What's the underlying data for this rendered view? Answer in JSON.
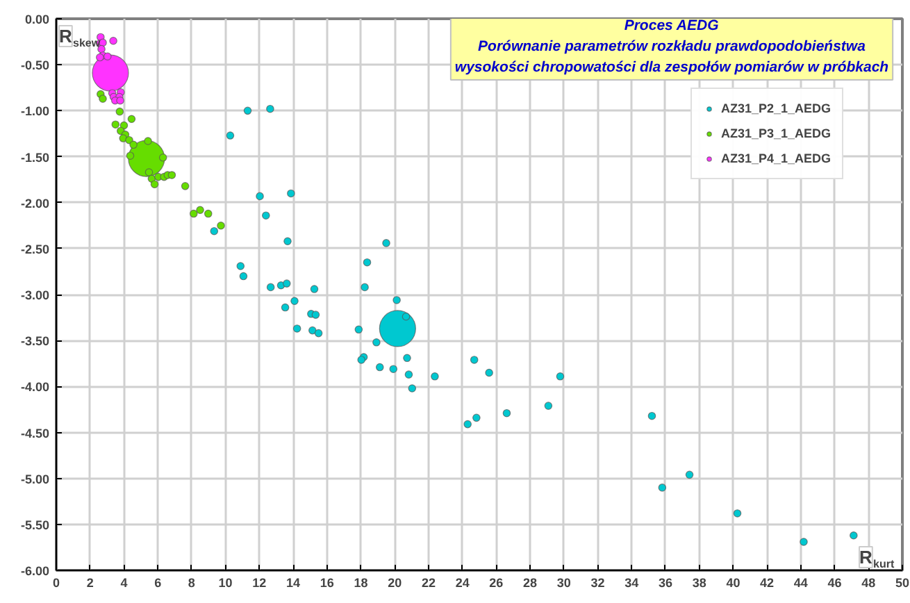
{
  "chart_data": {
    "type": "bubble",
    "title": "Proces AEDG\nPorównanie parametrów rozkładu prawdopodobieństwa\nwysokości chropowatości dla zespołów pomiarów w próbkach",
    "xlabel": "R$_{kurt}$",
    "ylabel": "R$_{skew}$",
    "series": [
      {
        "name": "AZ31_P2_1_AEDG",
        "color": "#00c8d0",
        "x": [
          11.31,
          12.64,
          10.28,
          12.03,
          13.87,
          12.39,
          13.67,
          9.33,
          19.5,
          10.89,
          11.06,
          18.37,
          12.67,
          13.28,
          13.62,
          15.25,
          18.23,
          20.12,
          14.08,
          13.53,
          15.06,
          15.33,
          14.23,
          15.14,
          15.5,
          17.87,
          20.67,
          18.92,
          18.17,
          18.03,
          19.12,
          19.92,
          20.73,
          20.83,
          22.37,
          21.03,
          24.7,
          25.58,
          29.78,
          29.08,
          26.62,
          24.83,
          24.31,
          35.2,
          37.42,
          35.81,
          40.25,
          44.17,
          47.12,
          20.17
        ],
        "values": [
          -1.0,
          -0.98,
          -1.27,
          -1.93,
          -1.9,
          -2.14,
          -2.42,
          -2.31,
          -2.44,
          -2.69,
          -2.8,
          -2.65,
          -2.92,
          -2.9,
          -2.88,
          -2.94,
          -2.92,
          -3.06,
          -3.07,
          -3.14,
          -3.21,
          -3.22,
          -3.37,
          -3.39,
          -3.42,
          -3.38,
          -3.24,
          -3.52,
          -3.68,
          -3.71,
          -3.79,
          -3.81,
          -3.69,
          -3.87,
          -3.89,
          -4.02,
          -3.71,
          -3.85,
          -3.89,
          -4.21,
          -4.29,
          -4.34,
          -4.41,
          -4.32,
          -4.96,
          -5.1,
          -5.38,
          -5.69,
          -5.62,
          -3.37
        ],
        "sizes": [
          0.04,
          0.04,
          0.04,
          0.04,
          0.04,
          0.04,
          0.04,
          0.04,
          0.04,
          0.04,
          0.04,
          0.04,
          0.04,
          0.04,
          0.04,
          0.04,
          0.04,
          0.04,
          0.04,
          0.04,
          0.04,
          0.04,
          0.04,
          0.04,
          0.04,
          0.04,
          0.04,
          0.04,
          0.04,
          0.04,
          0.04,
          0.04,
          0.04,
          0.04,
          0.04,
          0.04,
          0.04,
          0.04,
          0.04,
          0.04,
          0.04,
          0.04,
          0.04,
          0.04,
          0.04,
          0.04,
          0.04,
          0.04,
          0.04,
          1
        ]
      },
      {
        "name": "AZ31_P3_1_AEDG",
        "color": "#66dd00",
        "x": [
          2.62,
          2.75,
          3.75,
          4.45,
          3.5,
          4.0,
          3.81,
          4.08,
          3.95,
          4.31,
          4.56,
          5.42,
          4.37,
          6.31,
          5.48,
          5.64,
          5.81,
          6.03,
          6.37,
          6.58,
          6.83,
          7.62,
          8.12,
          8.5,
          8.98,
          9.73,
          5.33
        ],
        "values": [
          -0.82,
          -0.87,
          -1.01,
          -1.09,
          -1.15,
          -1.16,
          -1.22,
          -1.26,
          -1.3,
          -1.32,
          -1.37,
          -1.33,
          -1.49,
          -1.51,
          -1.67,
          -1.74,
          -1.8,
          -1.72,
          -1.72,
          -1.7,
          -1.7,
          -1.82,
          -2.12,
          -2.08,
          -2.12,
          -2.25,
          -1.52
        ],
        "sizes": [
          0.04,
          0.04,
          0.04,
          0.04,
          0.04,
          0.04,
          0.04,
          0.04,
          0.04,
          0.04,
          0.04,
          0.04,
          0.04,
          0.04,
          0.04,
          0.04,
          0.04,
          0.04,
          0.04,
          0.04,
          0.04,
          0.04,
          0.04,
          0.04,
          0.04,
          0.04,
          1
        ]
      },
      {
        "name": "AZ31_P4_1_AEDG",
        "color": "#ff33ff",
        "x": [
          2.62,
          2.58,
          2.75,
          3.37,
          2.67,
          2.75,
          2.58,
          3.03,
          3.31,
          3.81,
          3.39,
          3.73,
          3.48,
          3.78,
          3.2
        ],
        "values": [
          -0.2,
          -0.27,
          -0.26,
          -0.24,
          -0.33,
          -0.4,
          -0.42,
          -0.41,
          -0.81,
          -0.8,
          -0.85,
          -0.85,
          -0.89,
          -0.89,
          -0.59
        ],
        "sizes": [
          0.04,
          0.04,
          0.04,
          0.04,
          0.04,
          0.04,
          0.04,
          0.04,
          0.04,
          0.04,
          0.04,
          0.04,
          0.04,
          0.04,
          1
        ]
      }
    ],
    "xlim": [
      0,
      50
    ],
    "ylim": [
      -6,
      0
    ],
    "xticks": [
      0,
      2,
      4,
      6,
      8,
      10,
      12,
      14,
      16,
      18,
      20,
      22,
      24,
      26,
      28,
      30,
      32,
      34,
      36,
      38,
      40,
      42,
      44,
      46,
      48,
      50
    ],
    "yticks": [
      {
        "value": 0,
        "label": "0.00"
      },
      {
        "value": -0.5,
        "label": "-0.50"
      },
      {
        "value": -1,
        "label": "-1.00"
      },
      {
        "value": -1.5,
        "label": "-1.50"
      },
      {
        "value": -2,
        "label": "-2.00"
      },
      {
        "value": -2.5,
        "label": "-2.50"
      },
      {
        "value": -3,
        "label": "-3.00"
      },
      {
        "value": -3.5,
        "label": "-3.50"
      },
      {
        "value": -4,
        "label": "-4.00"
      },
      {
        "value": -4.5,
        "label": "-4.50"
      },
      {
        "value": -5,
        "label": "-5.00"
      },
      {
        "value": -5.5,
        "label": "-5.50"
      },
      {
        "value": -6,
        "label": "-6.00"
      }
    ],
    "grid": true,
    "legend": "top right",
    "marker": "circle"
  }
}
